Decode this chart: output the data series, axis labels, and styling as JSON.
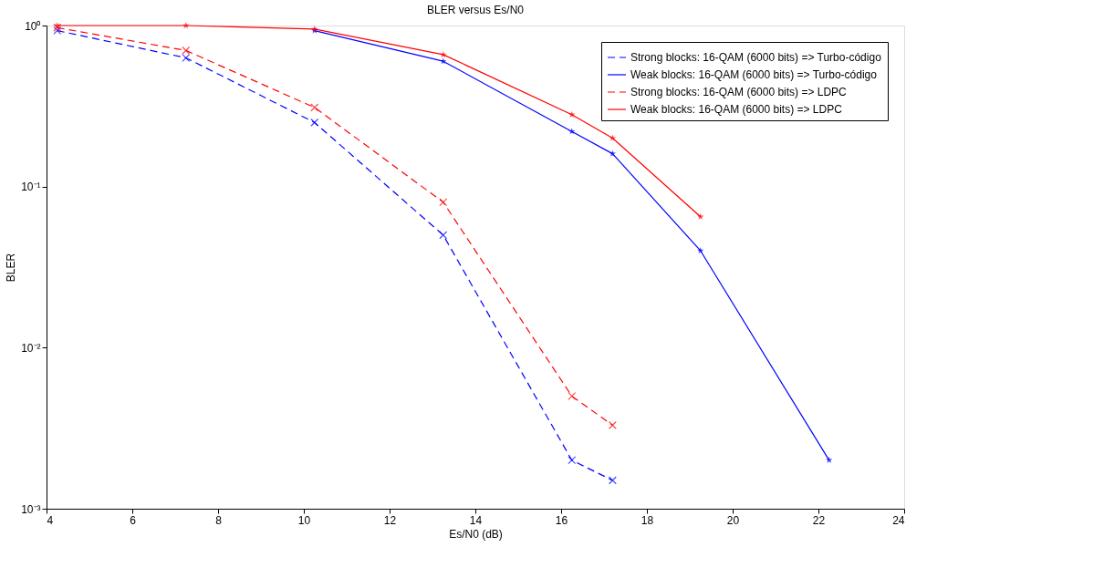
{
  "chart_data": {
    "type": "line",
    "title": "BLER versus Es/N0",
    "xlabel": "Es/N0 (dB)",
    "ylabel": "BLER",
    "log": "y",
    "grid": false,
    "legend": "top right",
    "xlim": [
      4,
      24
    ],
    "xticks": [
      4,
      6,
      8,
      10,
      12,
      14,
      16,
      18,
      20,
      22,
      24
    ],
    "ylim": [
      0.001,
      1
    ],
    "yticks": [
      {
        "value": 0.001,
        "label": "10⁻³"
      },
      {
        "value": 0.01,
        "label": "10⁻²"
      },
      {
        "value": 0.1,
        "label": "10⁻¹"
      },
      {
        "value": 1,
        "label": "10⁰"
      }
    ],
    "series": [
      {
        "name": "Strong blocks: 16-QAM (6000 bits) => Turbo-código",
        "color": "#0000ff",
        "line_style": "dashed",
        "marker": "cross",
        "x": [
          4.25,
          7.25,
          10.25,
          13.25,
          16.25,
          17.2
        ],
        "values": [
          0.93,
          0.63,
          0.25,
          0.05,
          0.002,
          0.0015
        ]
      },
      {
        "name": "Weak blocks: 16-QAM (6000 bits) => Turbo-código",
        "color": "#0000ff",
        "line_style": "solid",
        "marker": "star",
        "x": [
          10.25,
          13.25,
          16.25,
          17.2,
          19.25,
          22.25
        ],
        "values": [
          0.93,
          0.6,
          0.22,
          0.16,
          0.04,
          0.002
        ]
      },
      {
        "name": "Strong blocks: 16-QAM (6000 bits) => LDPC",
        "color": "#ff0000",
        "line_style": "dashed",
        "marker": "cross",
        "x": [
          4.25,
          7.25,
          10.25,
          13.25,
          16.25,
          17.2
        ],
        "values": [
          0.97,
          0.7,
          0.31,
          0.08,
          0.005,
          0.0033
        ]
      },
      {
        "name": "Weak blocks: 16-QAM (6000 bits) => LDPC",
        "color": "#ff0000",
        "line_style": "solid",
        "marker": "star",
        "x": [
          4.25,
          7.25,
          10.25,
          13.25,
          16.25,
          17.2,
          19.25
        ],
        "values": [
          1.0,
          1.0,
          0.95,
          0.66,
          0.28,
          0.2,
          0.065
        ]
      }
    ]
  }
}
